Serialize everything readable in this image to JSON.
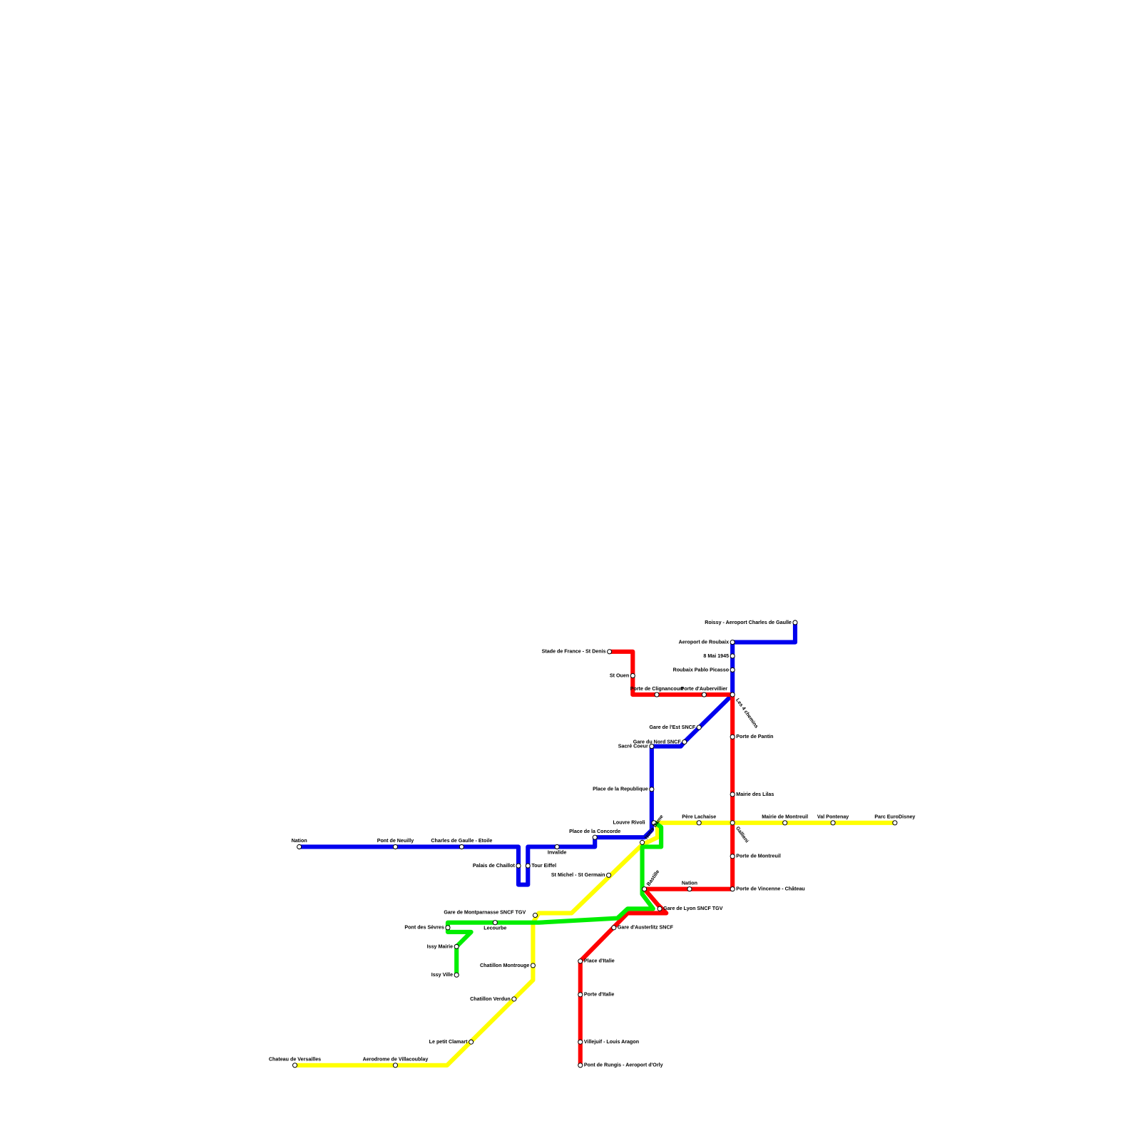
{
  "stations": [
    "Roissy - Aeroport Charles de Gaulle",
    "Aeroport de Roubaix",
    "8 Mai 1945",
    "Roubaix Pablo Picasso",
    "Les 4 chemins",
    "Gare de l'Est SNCF",
    "Gare du Nord SNCF",
    "Sacré Coeur",
    "Place de la Republique",
    "Louvre Rivoli",
    "Place de la Concorde",
    "Invalide",
    "Tour Eiffel",
    "Palais de Chaillot",
    "Charles de Gaulle - Etoile",
    "Pont de Neuilly",
    "Nation",
    "Stade de France - St Denis",
    "St Ouen",
    "Porte de Clignancourt",
    "Porte d'Aubervillier",
    "Porte de Pantin",
    "Mairie des Lilas",
    "Gallieni",
    "Porte de Montreuil",
    "Porte de Vincenne - Château",
    "Nation",
    "Bastille",
    "Gare de Lyon SNCF TGV",
    "Gare d'Austerlitz SNCF",
    "Place d'Italie",
    "Porte d'Italie",
    "Villejuif - Louis Aragon",
    "Pont de Rungis - Aeroport d'Orly",
    "Parc EuroDisney",
    "Val Pontenay",
    "Mairie de Montreuil",
    "Père Lachaise",
    "Notre Dame",
    "St Michel - St Germain",
    "Gare de Montparnasse SNCF TGV",
    "Chatillon Montrouge",
    "Chatillon Verdun",
    "Le petit Clamart",
    "Aerodrome de Villacoublay",
    "Chateau de Versailles",
    "Pont des Sèvres",
    "Lecourbe",
    "Issy Mairie",
    "Issy Ville"
  ]
}
